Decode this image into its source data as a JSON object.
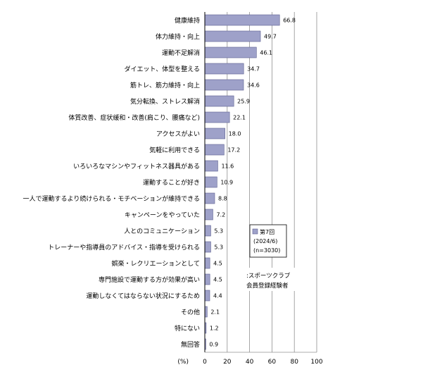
{
  "chart_data": {
    "type": "bar",
    "orientation": "horizontal",
    "categories": [
      "健康維持",
      "体力維持・向上",
      "運動不足解消",
      "ダイエット、体型を整える",
      "筋トレ、筋力維持・向上",
      "気分転換、ストレス解消",
      "体質改善、症状緩和・改善(肩こり、腰痛など)",
      "アクセスがよい",
      "気軽に利用できる",
      "いろいろなマシンやフィットネス器具がある",
      "運動することが好き",
      "一人で運動するより続けられる・モチベーションが維持できる",
      "キャンペーンをやっていた",
      "人とのコミュニケーション",
      "トレーナーや指導員のアドバイス・指導を受けられる",
      "娯楽・レクリエーションとして",
      "専門施設で運動する方が効果が高い",
      "運動しなくてはならない状況にするため",
      "その他",
      "特にない",
      "無回答"
    ],
    "values": [
      66.8,
      49.7,
      46.1,
      34.7,
      34.6,
      25.9,
      22.1,
      18.0,
      17.2,
      11.6,
      10.9,
      8.8,
      7.2,
      5.3,
      5.3,
      4.5,
      4.5,
      4.4,
      2.1,
      1.2,
      0.9
    ],
    "value_labels": [
      "66.8",
      "49.7",
      "46.1",
      "34.7",
      "34.6",
      "25.9",
      "22.1",
      "18.0",
      "17.2",
      "11.6",
      "10.9",
      "8.8",
      "7.2",
      "5.3",
      "5.3",
      "4.5",
      "4.5",
      "4.4",
      "2.1",
      "1.2",
      "0.9"
    ],
    "xlim": [
      0,
      100
    ],
    "xticks": [
      0,
      20,
      40,
      60,
      80,
      100
    ],
    "tick_labels": [
      "0",
      "20",
      "40",
      "60",
      "80",
      "100"
    ],
    "unit_label": "(%)",
    "grid": true,
    "legend": {
      "lines": [
        "第7回",
        "(2024/6)",
        "(n=3030)"
      ]
    },
    "note": {
      "lines": [
        ":スポーツクラブ",
        "会員登録経験者"
      ]
    },
    "colors": {
      "bar": "#9ea1c9",
      "bar_stroke": "#5b5f8f",
      "grid": "#909090",
      "axis": "#000000"
    }
  }
}
